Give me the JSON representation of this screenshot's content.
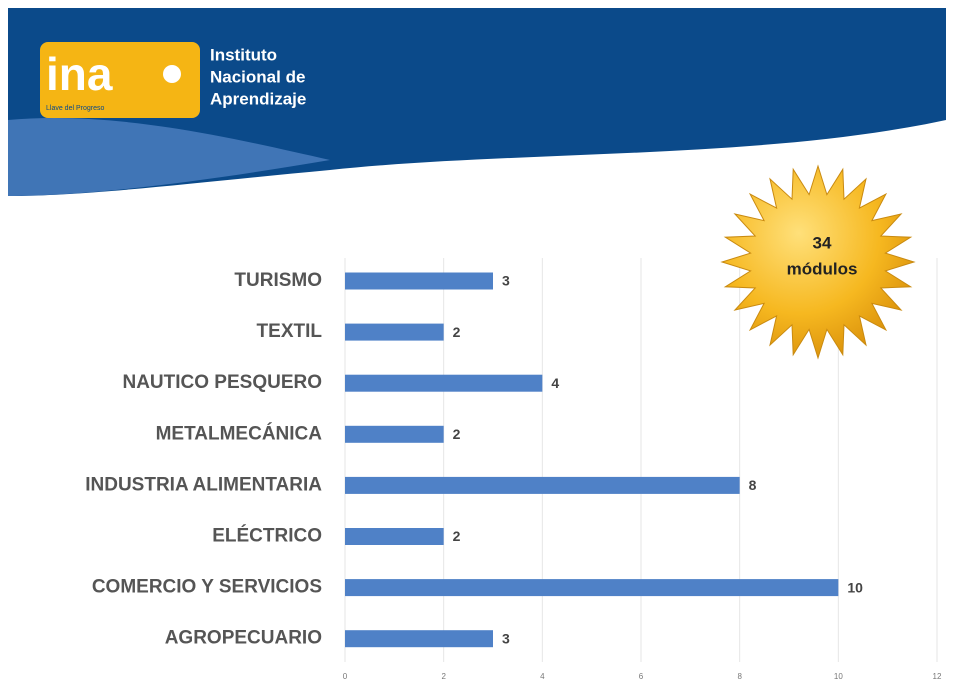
{
  "header": {
    "logo": "ina",
    "slogan": "Llave del Progreso",
    "name_lines": [
      "Instituto",
      "Nacional de",
      "Aprendizaje"
    ]
  },
  "badge": {
    "number": 34,
    "label": "módulos"
  },
  "chart_data": {
    "type": "hbar",
    "categories": [
      "TURISMO",
      "TEXTIL",
      "NAUTICO PESQUERO",
      "METALMECÁNICA",
      "INDUSTRIA ALIMENTARIA",
      "ELÉCTRICO",
      "COMERCIO Y SERVICIOS",
      "AGROPECUARIO"
    ],
    "values": [
      3,
      2,
      4,
      2,
      8,
      2,
      10,
      3
    ],
    "color": "#4f81c7",
    "xlim": [
      0,
      12
    ],
    "xticks": [
      0,
      2,
      4,
      6,
      8,
      10,
      12
    ],
    "grid": true
  }
}
